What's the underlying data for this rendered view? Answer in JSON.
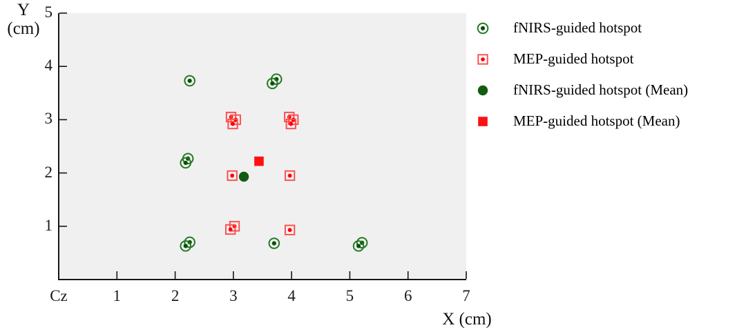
{
  "axes": {
    "y_label_line1": "Y",
    "y_label_line2": "(cm)",
    "x_label": "X (cm)"
  },
  "chart_data": {
    "type": "scatter",
    "title": "",
    "xlabel": "X (cm)",
    "ylabel": "Y (cm)",
    "xlim": [
      0,
      7
    ],
    "ylim": [
      0,
      5
    ],
    "grid": false,
    "legend_position": "right-outside",
    "plot_bg": "#f0f0f0",
    "axis_color": "#151515",
    "x_tick_labels": [
      "Cz",
      "1",
      "2",
      "3",
      "4",
      "5",
      "6",
      "7"
    ],
    "x_tick_values": [
      0,
      1,
      2,
      3,
      4,
      5,
      6,
      7
    ],
    "y_tick_labels": [
      "5",
      "4",
      "3",
      "2",
      "1"
    ],
    "y_tick_values": [
      5,
      4,
      3,
      2,
      1
    ],
    "series": [
      {
        "name": "fNIRS-guided hotspot",
        "marker": "open-circle-dot",
        "color": "#217a21",
        "dot_color": "#0b4f0b",
        "points": [
          [
            2.25,
            3.73
          ],
          [
            3.74,
            3.76
          ],
          [
            3.67,
            3.68
          ],
          [
            2.22,
            2.27
          ],
          [
            2.18,
            2.19
          ],
          [
            2.25,
            0.7
          ],
          [
            2.18,
            0.63
          ],
          [
            3.7,
            0.68
          ],
          [
            5.21,
            0.69
          ],
          [
            5.15,
            0.63
          ]
        ]
      },
      {
        "name": "MEP-guided hotspot",
        "marker": "open-square-dot",
        "color": "#ff4a4a",
        "dot_color": "#fe0000",
        "points": [
          [
            2.96,
            3.05
          ],
          [
            3.04,
            3.0
          ],
          [
            2.99,
            2.92
          ],
          [
            3.96,
            3.05
          ],
          [
            4.03,
            3.0
          ],
          [
            3.99,
            2.92
          ],
          [
            2.98,
            1.95
          ],
          [
            3.97,
            1.95
          ],
          [
            3.02,
            1.0
          ],
          [
            2.95,
            0.94
          ],
          [
            3.97,
            0.93
          ]
        ]
      },
      {
        "name": "fNIRS-guided hotspot (Mean)",
        "marker": "filled-circle",
        "color": "#115c11",
        "points": [
          [
            3.18,
            1.93
          ]
        ]
      },
      {
        "name": "MEP-guided hotspot (Mean)",
        "marker": "filled-square",
        "color": "#fe1010",
        "points": [
          [
            3.44,
            2.22
          ]
        ]
      }
    ]
  },
  "legend": {
    "items": [
      {
        "label": "fNIRS-guided hotspot",
        "marker": "open-circle-dot"
      },
      {
        "label": "MEP-guided hotspot",
        "marker": "open-square-dot"
      },
      {
        "label": "fNIRS-guided hotspot (Mean)",
        "marker": "filled-circle"
      },
      {
        "label": "MEP-guided hotspot (Mean)",
        "marker": "filled-square"
      }
    ]
  }
}
